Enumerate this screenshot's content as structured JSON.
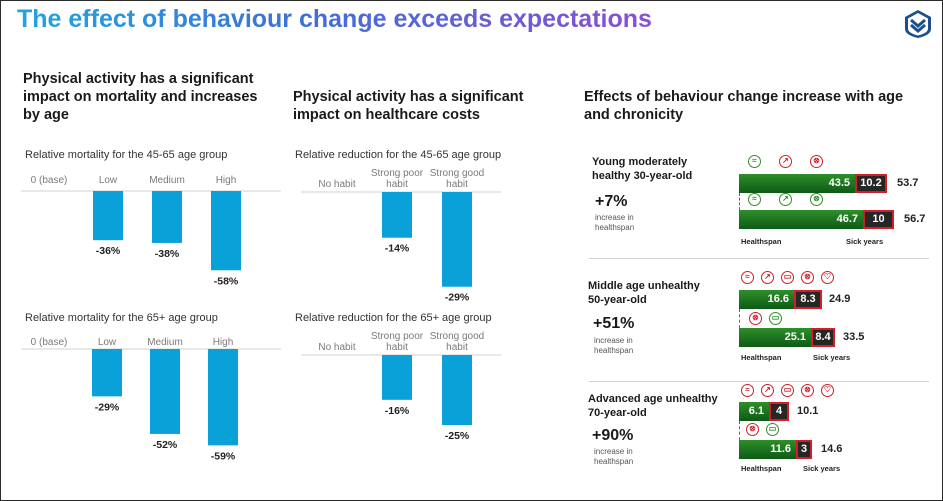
{
  "title": "The effect of behaviour change exceeds expectations",
  "icons": {
    "logo": "shield-chevron-logo-icon"
  },
  "columns": {
    "c1": "Physical activity has a significant impact on mortality and increases by age",
    "c2": "Physical activity has a significant impact on healthcare costs",
    "c3": "Effects of behaviour change increase with age and chronicity"
  },
  "chart_data": [
    {
      "type": "bar",
      "title": "Relative mortality for the 45-65 age group",
      "categories": [
        "0 (base)",
        "Low",
        "Medium",
        "High"
      ],
      "values": [
        0,
        -36,
        -38,
        -58
      ],
      "labels": [
        "",
        "-36%",
        "-38%",
        "-58%"
      ],
      "ylim": [
        -60,
        0
      ],
      "color": "#0aa0d8"
    },
    {
      "type": "bar",
      "title": "Relative mortality for the 65+ age group",
      "categories": [
        "0 (base)",
        "Low",
        "Medium",
        "High"
      ],
      "values": [
        0,
        -29,
        -52,
        -59
      ],
      "labels": [
        "",
        "-29%",
        "-52%",
        "-59%"
      ],
      "ylim": [
        -60,
        0
      ],
      "color": "#0aa0d8"
    },
    {
      "type": "bar",
      "title": "Relative reduction for the 45-65 age group",
      "categories": [
        "No habit",
        "Strong poor habit",
        "Strong good habit"
      ],
      "values": [
        0,
        -14,
        -29
      ],
      "labels": [
        "",
        "-14%",
        "-29%"
      ],
      "ylim": [
        -30,
        0
      ],
      "color": "#0aa0d8"
    },
    {
      "type": "bar",
      "title": "Relative reduction for the 65+ age group",
      "categories": [
        "No habit",
        "Strong poor habit",
        "Strong good habit"
      ],
      "values": [
        0,
        -16,
        -25
      ],
      "labels": [
        "",
        "-16%",
        "-25%"
      ],
      "ylim": [
        -30,
        0
      ],
      "color": "#0aa0d8"
    },
    {
      "type": "bar",
      "stacked": true,
      "orientation": "horizontal",
      "series_names": [
        "Healthspan",
        "Sick years"
      ],
      "profiles": [
        {
          "name": "Young moderately healthy 30-year-old",
          "increase": "+7%",
          "increase_note": "increase in healthspan",
          "rows": [
            {
              "healthspan": 43.5,
              "sick": 10.2,
              "total": 53.7
            },
            {
              "healthspan": 46.7,
              "sick": 10,
              "total": 56.7
            }
          ],
          "icons_row1": [
            {
              "name": "swimming-icon",
              "color": "green"
            },
            {
              "name": "running-icon",
              "color": "red"
            },
            {
              "name": "cycling-icon",
              "color": "red"
            }
          ],
          "icons_row2": [
            {
              "name": "swimming-icon",
              "color": "green"
            },
            {
              "name": "running-icon",
              "color": "green"
            },
            {
              "name": "cycling-icon",
              "color": "green"
            }
          ]
        },
        {
          "name": "Middle age unhealthy 50-year-old",
          "increase": "+51%",
          "increase_note": "increase in healthspan",
          "rows": [
            {
              "healthspan": 16.6,
              "sick": 8.3,
              "total": 24.9
            },
            {
              "healthspan": 25.1,
              "sick": 8.4,
              "total": 33.5
            }
          ],
          "icons_row1": [
            {
              "name": "swimming-icon",
              "color": "red"
            },
            {
              "name": "running-icon",
              "color": "red"
            },
            {
              "name": "cigarette-icon",
              "color": "red"
            },
            {
              "name": "cycling-icon",
              "color": "red"
            },
            {
              "name": "heart-icon",
              "color": "red"
            }
          ],
          "icons_row2": [
            {
              "name": "cycling-icon",
              "color": "red"
            },
            {
              "name": "cigarette-icon",
              "color": "green"
            }
          ]
        },
        {
          "name": "Advanced age unhealthy 70-year-old",
          "increase": "+90%",
          "increase_note": "increase in healthspan",
          "rows": [
            {
              "healthspan": 6.1,
              "sick": 4,
              "total": 10.1
            },
            {
              "healthspan": 11.6,
              "sick": 3,
              "total": 14.6
            }
          ],
          "icons_row1": [
            {
              "name": "swimming-icon",
              "color": "red"
            },
            {
              "name": "running-icon",
              "color": "red"
            },
            {
              "name": "cigarette-icon",
              "color": "red"
            },
            {
              "name": "cycling-icon",
              "color": "red"
            },
            {
              "name": "heart-icon",
              "color": "red"
            }
          ],
          "icons_row2": [
            {
              "name": "cycling-icon",
              "color": "red"
            },
            {
              "name": "cigarette-icon",
              "color": "green"
            }
          ]
        }
      ]
    }
  ]
}
